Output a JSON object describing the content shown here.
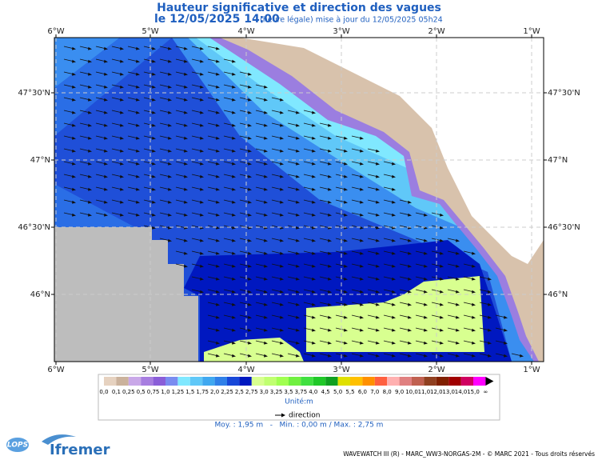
{
  "header": {
    "title": "Hauteur significative et direction des vagues",
    "date": "le 12/05/2025 14:00",
    "update": "(heure légale) mise à jour du 12/05/2025 05h24"
  },
  "map": {
    "lon_labels": [
      "6°W",
      "5°W",
      "4°W",
      "3°W",
      "2°W",
      "1°W"
    ],
    "lat_labels": [
      "47°30'N",
      "47°N",
      "46°30'N",
      "46°N"
    ]
  },
  "legend": {
    "labels": [
      "0,0",
      "0,1",
      "0,25",
      "0,5",
      "0,75",
      "1,0",
      "1,25",
      "1,5",
      "1,75",
      "2,0",
      "2,25",
      "2,5",
      "2,75",
      "3,0",
      "3,25",
      "3,5",
      "3,75",
      "4,0",
      "4,5",
      "5,0",
      "5,5",
      "6,0",
      "7,0",
      "8,0",
      "9,0",
      "10,0",
      "11,0",
      "12,0",
      "13,0",
      "14,0",
      "15,0",
      "∞"
    ],
    "unit": "Unité:m",
    "direction": "direction",
    "stats": "Moy. : 1,95 m   -   Min. : 0,00 m / Max. : 2,75 m"
  },
  "footer": {
    "logo_lops": "LOPS",
    "logo_ifremer": "Ifremer",
    "credits": "WAVEWATCH III (R) - MARC_WW3-NORGAS-2M - © MARC 2021 - Tous droits réservés"
  }
}
